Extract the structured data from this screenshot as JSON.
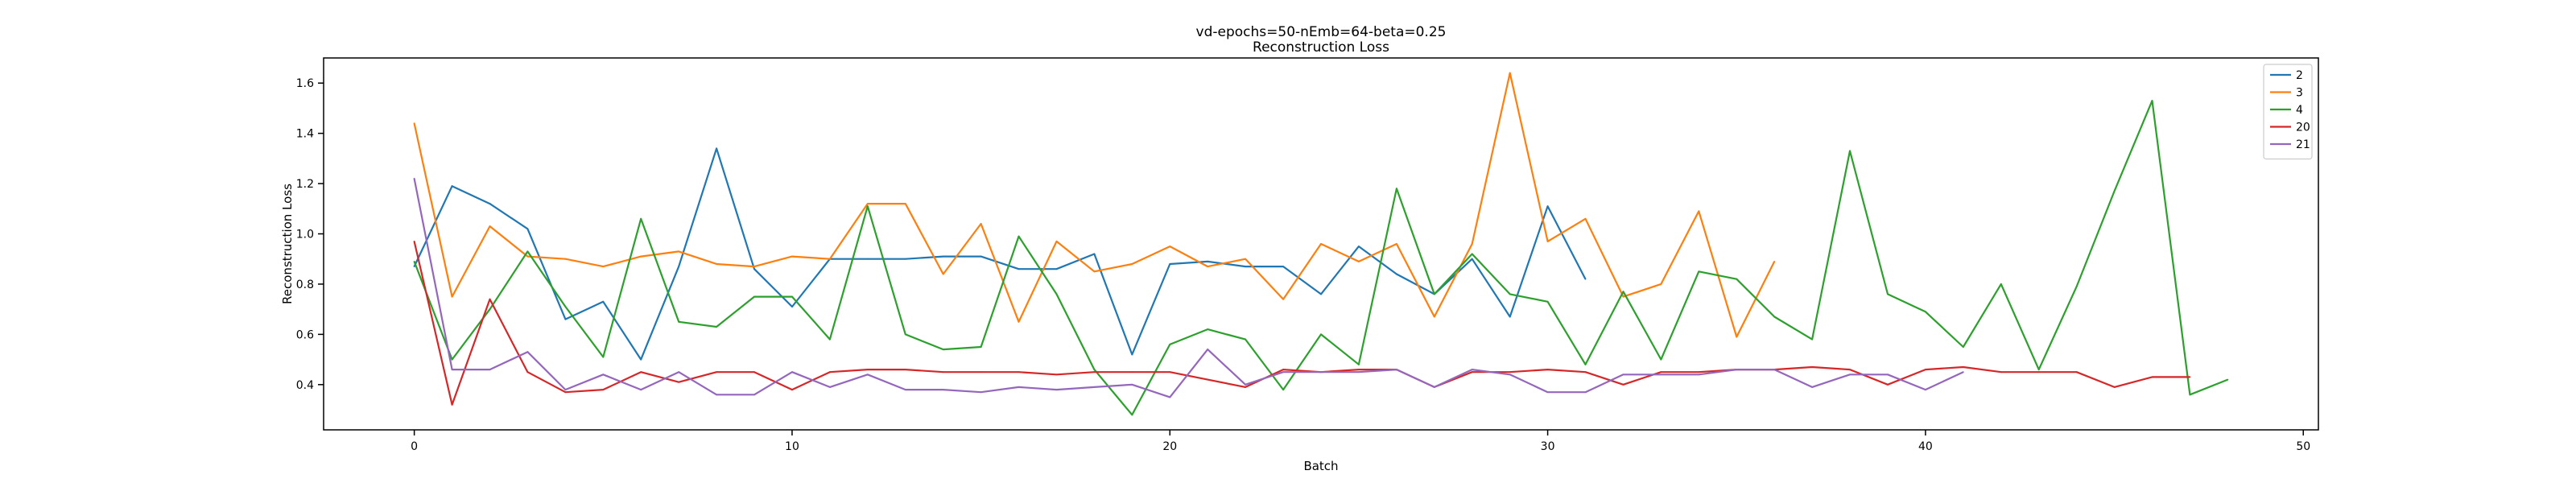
{
  "chart_data": {
    "type": "line",
    "title": "vd-epochs=50-nEmb=64-beta=0.25",
    "subtitle": "Reconstruction Loss",
    "xlabel": "Batch",
    "ylabel": "Reconstruction Loss",
    "xlim": [
      -2.4,
      50.4
    ],
    "ylim": [
      0.22,
      1.7
    ],
    "xticks": [
      0,
      10,
      20,
      30,
      40,
      50
    ],
    "yticks": [
      0.4,
      0.6,
      0.8,
      1.0,
      1.2,
      1.4,
      1.6
    ],
    "xtick_labels": [
      "0",
      "10",
      "20",
      "30",
      "40",
      "50"
    ],
    "ytick_labels": [
      "0.4",
      "0.6",
      "0.8",
      "1.0",
      "1.2",
      "1.4",
      "1.6"
    ],
    "grid": false,
    "legend_position": "top-right",
    "series": [
      {
        "name": "2",
        "color": "#1f77b4",
        "values": [
          0.87,
          1.19,
          1.12,
          1.02,
          0.66,
          0.73,
          0.5,
          0.87,
          1.34,
          0.86,
          0.71,
          0.9,
          0.9,
          0.9,
          0.91,
          0.91,
          0.86,
          0.86,
          0.92,
          0.52,
          0.88,
          0.89,
          0.87,
          0.87,
          0.76,
          0.95,
          0.84,
          0.76,
          0.9,
          0.67,
          1.11,
          0.82
        ]
      },
      {
        "name": "3",
        "color": "#ff7f0e",
        "values": [
          1.44,
          0.75,
          1.03,
          0.91,
          0.9,
          0.87,
          0.91,
          0.93,
          0.88,
          0.87,
          0.91,
          0.9,
          1.12,
          1.12,
          0.84,
          1.04,
          0.65,
          0.97,
          0.85,
          0.88,
          0.95,
          0.87,
          0.9,
          0.74,
          0.96,
          0.89,
          0.96,
          0.67,
          0.96,
          1.64,
          0.97,
          1.06,
          0.75,
          0.8,
          1.09,
          0.59,
          0.89
        ]
      },
      {
        "name": "4",
        "color": "#2ca02c",
        "values": [
          0.89,
          0.5,
          0.7,
          0.93,
          0.71,
          0.51,
          1.06,
          0.65,
          0.63,
          0.75,
          0.75,
          0.58,
          1.11,
          0.6,
          0.54,
          0.55,
          0.99,
          0.76,
          0.46,
          0.28,
          0.56,
          0.62,
          0.58,
          0.38,
          0.6,
          0.48,
          1.18,
          0.76,
          0.92,
          0.76,
          0.73,
          0.48,
          0.77,
          0.5,
          0.85,
          0.82,
          0.67,
          0.58,
          1.33,
          0.76,
          0.69,
          0.55,
          0.8,
          0.46,
          0.79,
          1.17,
          1.53,
          0.36,
          0.42
        ]
      },
      {
        "name": "20",
        "color": "#d62728",
        "values": [
          0.97,
          0.32,
          0.74,
          0.45,
          0.37,
          0.38,
          0.45,
          0.41,
          0.45,
          0.45,
          0.38,
          0.45,
          0.46,
          0.46,
          0.45,
          0.45,
          0.45,
          0.44,
          0.45,
          0.45,
          0.45,
          0.42,
          0.39,
          0.46,
          0.45,
          0.46,
          0.46,
          0.39,
          0.45,
          0.45,
          0.46,
          0.45,
          0.4,
          0.45,
          0.45,
          0.46,
          0.46,
          0.47,
          0.46,
          0.4,
          0.46,
          0.47,
          0.45,
          0.45,
          0.45,
          0.39,
          0.43,
          0.43
        ]
      },
      {
        "name": "21",
        "color": "#9467bd",
        "values": [
          1.22,
          0.46,
          0.46,
          0.53,
          0.38,
          0.44,
          0.38,
          0.45,
          0.36,
          0.36,
          0.45,
          0.39,
          0.44,
          0.38,
          0.38,
          0.37,
          0.39,
          0.38,
          0.39,
          0.4,
          0.35,
          0.54,
          0.4,
          0.45,
          0.45,
          0.45,
          0.46,
          0.39,
          0.46,
          0.44,
          0.37,
          0.37,
          0.44,
          0.44,
          0.44,
          0.46,
          0.46,
          0.39,
          0.44,
          0.44,
          0.38,
          0.45
        ]
      }
    ]
  }
}
